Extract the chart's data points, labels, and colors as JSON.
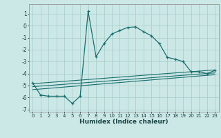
{
  "title": "",
  "xlabel": "Humidex (Indice chaleur)",
  "xlim": [
    -0.5,
    23.5
  ],
  "ylim": [
    -7.2,
    1.8
  ],
  "yticks": [
    1,
    0,
    -1,
    -2,
    -3,
    -4,
    -5,
    -6,
    -7
  ],
  "xticks": [
    0,
    1,
    2,
    3,
    4,
    5,
    6,
    7,
    8,
    9,
    10,
    11,
    12,
    13,
    14,
    15,
    16,
    17,
    18,
    19,
    20,
    21,
    22,
    23
  ],
  "bg_color": "#cce8e6",
  "grid_color": "#aacfcd",
  "line_color": "#1a6e6e",
  "line1_x": [
    0,
    1,
    2,
    3,
    4,
    5,
    6,
    7,
    8,
    9,
    10,
    11,
    12,
    13,
    14,
    15,
    16,
    17,
    18,
    19,
    20,
    21,
    22,
    23
  ],
  "line1_y": [
    -4.8,
    -5.8,
    -5.9,
    -5.9,
    -5.9,
    -6.5,
    -5.9,
    1.2,
    -2.6,
    -1.5,
    -0.7,
    -0.4,
    -0.15,
    -0.1,
    -0.5,
    -0.85,
    -1.5,
    -2.65,
    -2.8,
    -3.0,
    -3.85,
    -3.85,
    -4.0,
    -3.75
  ],
  "line2_x": [
    0,
    23
  ],
  "line2_y": [
    -4.85,
    -3.7
  ],
  "line3_x": [
    0,
    23
  ],
  "line3_y": [
    -5.1,
    -3.95
  ],
  "line4_x": [
    0,
    23
  ],
  "line4_y": [
    -5.35,
    -4.1
  ]
}
